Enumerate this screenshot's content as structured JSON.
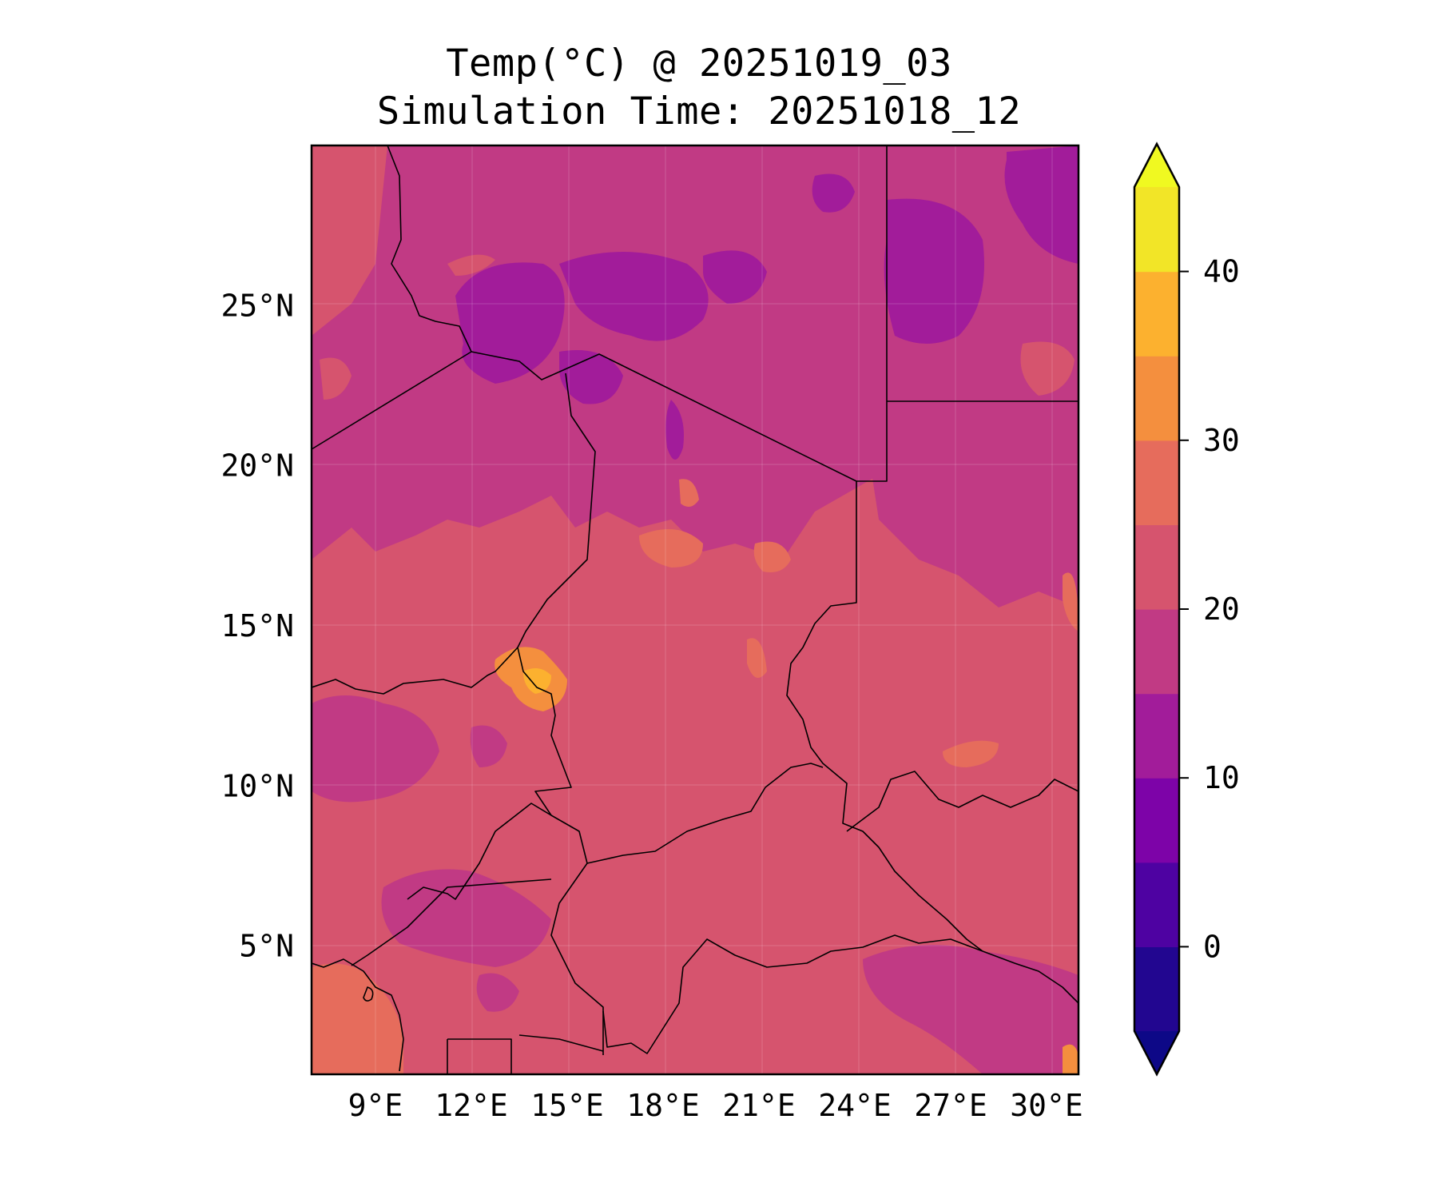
{
  "title": {
    "line1": "Temp(°C) @ 20251019_03",
    "line2": "Simulation Time: 20251018_12"
  },
  "map": {
    "region": "Central-North Africa",
    "lon_range": [
      7.0,
      31.0
    ],
    "lat_range": [
      1.0,
      30.0
    ],
    "x_ticks": [
      {
        "value": 9,
        "label": "9°E"
      },
      {
        "value": 12,
        "label": "12°E"
      },
      {
        "value": 15,
        "label": "15°E"
      },
      {
        "value": 18,
        "label": "18°E"
      },
      {
        "value": 21,
        "label": "21°E"
      },
      {
        "value": 24,
        "label": "24°E"
      },
      {
        "value": 27,
        "label": "27°E"
      },
      {
        "value": 30,
        "label": "30°E"
      }
    ],
    "y_ticks": [
      {
        "value": 5,
        "label": "5°N"
      },
      {
        "value": 10,
        "label": "10°N"
      },
      {
        "value": 15,
        "label": "15°N"
      },
      {
        "value": 20,
        "label": "20°N"
      },
      {
        "value": 25,
        "label": "25°N"
      }
    ],
    "dominant_temperature_c": "20–25",
    "colors": {
      "t10_15": "#a21c9a",
      "t15_20": "#c13a84",
      "t20_25": "#d6546e",
      "t25_30": "#e66c5c",
      "t30_35": "#f48f3e",
      "t35_40": "#fcb12f"
    }
  },
  "colorbar": {
    "colormap": "plasma",
    "extend": "both",
    "levels": [
      -5,
      0,
      5,
      10,
      15,
      20,
      25,
      30,
      35,
      40,
      45
    ],
    "colors": [
      "#220690",
      "#4e02a2",
      "#7d03a8",
      "#a21c9a",
      "#c13a84",
      "#d6546e",
      "#e66c5c",
      "#f48f3e",
      "#fcb12f",
      "#f2e527"
    ],
    "under_color": "#0d0887",
    "over_color": "#f0f921",
    "tick_values": [
      0,
      10,
      20,
      30,
      40
    ],
    "tick_labels": [
      "0",
      "10",
      "20",
      "30",
      "40"
    ]
  }
}
